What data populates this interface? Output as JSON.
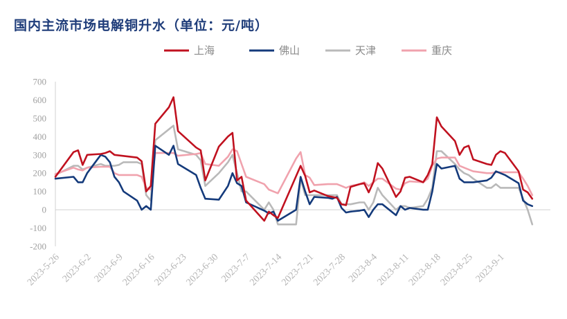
{
  "chart_data": {
    "type": "line",
    "title": "国内主流市场电解铜升水（单位：元/吨）",
    "xlabel": "",
    "ylabel": "",
    "ylim": [
      -200,
      700
    ],
    "yticks": [
      -200,
      -100,
      0,
      100,
      200,
      300,
      400,
      500,
      600,
      700
    ],
    "x_range": [
      "2023-5-26",
      "2023-9-12"
    ],
    "x_tick_labels": [
      "2023-5-26",
      "2023-6-2",
      "2023-6-9",
      "2023-6-16",
      "2023-6-23",
      "2023-6-30",
      "2023-7-7",
      "2023-7-14",
      "2023-7-21",
      "2023-7-28",
      "2023-8-4",
      "2023-8-11",
      "2023-8-18",
      "2023-8-25",
      "2023-9-1"
    ],
    "grid": false,
    "legend_position": "top",
    "legend": [
      "上海",
      "佛山",
      "天津",
      "重庆"
    ],
    "series": [
      {
        "name": "上海",
        "color": "#c0111f",
        "points": [
          [
            "2023-5-26",
            180
          ],
          [
            "2023-5-30",
            315
          ],
          [
            "2023-5-31",
            325
          ],
          [
            "2023-6-1",
            245
          ],
          [
            "2023-6-2",
            300
          ],
          [
            "2023-6-5",
            305
          ],
          [
            "2023-6-6",
            310
          ],
          [
            "2023-6-7",
            320
          ],
          [
            "2023-6-8",
            300
          ],
          [
            "2023-6-13",
            285
          ],
          [
            "2023-6-14",
            265
          ],
          [
            "2023-6-15",
            100
          ],
          [
            "2023-6-16",
            130
          ],
          [
            "2023-6-17",
            470
          ],
          [
            "2023-6-20",
            560
          ],
          [
            "2023-6-21",
            615
          ],
          [
            "2023-6-22",
            430
          ],
          [
            "2023-6-26",
            340
          ],
          [
            "2023-6-27",
            325
          ],
          [
            "2023-6-28",
            160
          ],
          [
            "2023-7-1",
            345
          ],
          [
            "2023-7-3",
            400
          ],
          [
            "2023-7-4",
            420
          ],
          [
            "2023-7-5",
            160
          ],
          [
            "2023-7-6",
            180
          ],
          [
            "2023-7-7",
            50
          ],
          [
            "2023-7-11",
            -60
          ],
          [
            "2023-7-12",
            -10
          ],
          [
            "2023-7-13",
            -30
          ],
          [
            "2023-7-14",
            -45
          ],
          [
            "2023-7-19",
            240
          ],
          [
            "2023-7-20",
            185
          ],
          [
            "2023-7-21",
            95
          ],
          [
            "2023-7-22",
            105
          ],
          [
            "2023-7-25",
            75
          ],
          [
            "2023-7-26",
            70
          ],
          [
            "2023-7-27",
            65
          ],
          [
            "2023-7-28",
            30
          ],
          [
            "2023-7-29",
            25
          ],
          [
            "2023-7-30",
            125
          ],
          [
            "2023-8-1",
            140
          ],
          [
            "2023-8-2",
            145
          ],
          [
            "2023-8-3",
            95
          ],
          [
            "2023-8-4",
            150
          ],
          [
            "2023-8-5",
            255
          ],
          [
            "2023-8-6",
            225
          ],
          [
            "2023-8-9",
            70
          ],
          [
            "2023-8-10",
            100
          ],
          [
            "2023-8-11",
            175
          ],
          [
            "2023-8-12",
            180
          ],
          [
            "2023-8-15",
            150
          ],
          [
            "2023-8-16",
            190
          ],
          [
            "2023-8-17",
            250
          ],
          [
            "2023-8-18",
            505
          ],
          [
            "2023-8-19",
            455
          ],
          [
            "2023-8-22",
            375
          ],
          [
            "2023-8-23",
            300
          ],
          [
            "2023-8-24",
            340
          ],
          [
            "2023-8-25",
            350
          ],
          [
            "2023-8-26",
            275
          ],
          [
            "2023-8-29",
            250
          ],
          [
            "2023-8-30",
            245
          ],
          [
            "2023-8-31",
            300
          ],
          [
            "2023-9-1",
            320
          ],
          [
            "2023-9-2",
            310
          ],
          [
            "2023-9-5",
            210
          ],
          [
            "2023-9-6",
            110
          ],
          [
            "2023-9-7",
            95
          ],
          [
            "2023-9-8",
            60
          ]
        ]
      },
      {
        "name": "佛山",
        "color": "#143a7b",
        "points": [
          [
            "2023-5-26",
            170
          ],
          [
            "2023-5-30",
            180
          ],
          [
            "2023-5-31",
            150
          ],
          [
            "2023-6-1",
            150
          ],
          [
            "2023-6-2",
            200
          ],
          [
            "2023-6-5",
            300
          ],
          [
            "2023-6-6",
            290
          ],
          [
            "2023-6-7",
            260
          ],
          [
            "2023-6-8",
            180
          ],
          [
            "2023-6-9",
            150
          ],
          [
            "2023-6-10",
            100
          ],
          [
            "2023-6-13",
            50
          ],
          [
            "2023-6-14",
            0
          ],
          [
            "2023-6-15",
            20
          ],
          [
            "2023-6-16",
            0
          ],
          [
            "2023-6-17",
            350
          ],
          [
            "2023-6-20",
            300
          ],
          [
            "2023-6-21",
            350
          ],
          [
            "2023-6-22",
            250
          ],
          [
            "2023-6-26",
            190
          ],
          [
            "2023-6-27",
            120
          ],
          [
            "2023-6-28",
            60
          ],
          [
            "2023-7-1",
            55
          ],
          [
            "2023-7-3",
            130
          ],
          [
            "2023-7-4",
            200
          ],
          [
            "2023-7-5",
            145
          ],
          [
            "2023-7-6",
            130
          ],
          [
            "2023-7-7",
            40
          ],
          [
            "2023-7-11",
            -5
          ],
          [
            "2023-7-12",
            -20
          ],
          [
            "2023-7-13",
            -10
          ],
          [
            "2023-7-14",
            -60
          ],
          [
            "2023-7-18",
            0
          ],
          [
            "2023-7-19",
            180
          ],
          [
            "2023-7-20",
            100
          ],
          [
            "2023-7-21",
            30
          ],
          [
            "2023-7-22",
            70
          ],
          [
            "2023-7-25",
            65
          ],
          [
            "2023-7-26",
            60
          ],
          [
            "2023-7-27",
            70
          ],
          [
            "2023-7-28",
            10
          ],
          [
            "2023-7-29",
            -15
          ],
          [
            "2023-7-30",
            -10
          ],
          [
            "2023-8-1",
            -5
          ],
          [
            "2023-8-2",
            0
          ],
          [
            "2023-8-3",
            -40
          ],
          [
            "2023-8-4",
            0
          ],
          [
            "2023-8-5",
            30
          ],
          [
            "2023-8-6",
            30
          ],
          [
            "2023-8-9",
            -30
          ],
          [
            "2023-8-10",
            20
          ],
          [
            "2023-8-11",
            0
          ],
          [
            "2023-8-12",
            10
          ],
          [
            "2023-8-15",
            0
          ],
          [
            "2023-8-16",
            0
          ],
          [
            "2023-8-17",
            100
          ],
          [
            "2023-8-18",
            250
          ],
          [
            "2023-8-19",
            225
          ],
          [
            "2023-8-22",
            240
          ],
          [
            "2023-8-23",
            170
          ],
          [
            "2023-8-24",
            150
          ],
          [
            "2023-8-25",
            150
          ],
          [
            "2023-8-26",
            150
          ],
          [
            "2023-8-29",
            160
          ],
          [
            "2023-8-30",
            175
          ],
          [
            "2023-8-31",
            210
          ],
          [
            "2023-9-1",
            200
          ],
          [
            "2023-9-2",
            190
          ],
          [
            "2023-9-5",
            145
          ],
          [
            "2023-9-6",
            50
          ],
          [
            "2023-9-7",
            30
          ],
          [
            "2023-9-8",
            20
          ]
        ]
      },
      {
        "name": "天津",
        "color": "#b9b9b9",
        "points": [
          [
            "2023-5-26",
            190
          ],
          [
            "2023-5-30",
            240
          ],
          [
            "2023-5-31",
            240
          ],
          [
            "2023-6-1",
            220
          ],
          [
            "2023-6-2",
            230
          ],
          [
            "2023-6-5",
            250
          ],
          [
            "2023-6-6",
            240
          ],
          [
            "2023-6-7",
            240
          ],
          [
            "2023-6-8",
            240
          ],
          [
            "2023-6-9",
            245
          ],
          [
            "2023-6-10",
            260
          ],
          [
            "2023-6-13",
            260
          ],
          [
            "2023-6-14",
            250
          ],
          [
            "2023-6-15",
            80
          ],
          [
            "2023-6-16",
            50
          ],
          [
            "2023-6-17",
            380
          ],
          [
            "2023-6-20",
            440
          ],
          [
            "2023-6-21",
            460
          ],
          [
            "2023-6-22",
            330
          ],
          [
            "2023-6-26",
            300
          ],
          [
            "2023-6-27",
            270
          ],
          [
            "2023-6-28",
            130
          ],
          [
            "2023-7-1",
            200
          ],
          [
            "2023-7-3",
            260
          ],
          [
            "2023-7-4",
            300
          ],
          [
            "2023-7-5",
            200
          ],
          [
            "2023-7-6",
            100
          ],
          [
            "2023-7-7",
            100
          ],
          [
            "2023-7-11",
            0
          ],
          [
            "2023-7-12",
            40
          ],
          [
            "2023-7-13",
            0
          ],
          [
            "2023-7-14",
            -80
          ],
          [
            "2023-7-18",
            -80
          ],
          [
            "2023-7-19",
            170
          ],
          [
            "2023-7-20",
            80
          ],
          [
            "2023-7-21",
            80
          ],
          [
            "2023-7-22",
            80
          ],
          [
            "2023-7-25",
            80
          ],
          [
            "2023-7-26",
            80
          ],
          [
            "2023-7-27",
            80
          ],
          [
            "2023-7-28",
            30
          ],
          [
            "2023-7-29",
            30
          ],
          [
            "2023-7-30",
            30
          ],
          [
            "2023-8-1",
            40
          ],
          [
            "2023-8-2",
            40
          ],
          [
            "2023-8-3",
            0
          ],
          [
            "2023-8-4",
            40
          ],
          [
            "2023-8-5",
            120
          ],
          [
            "2023-8-6",
            80
          ],
          [
            "2023-8-9",
            0
          ],
          [
            "2023-8-10",
            20
          ],
          [
            "2023-8-11",
            20
          ],
          [
            "2023-8-12",
            10
          ],
          [
            "2023-8-15",
            20
          ],
          [
            "2023-8-16",
            60
          ],
          [
            "2023-8-17",
            120
          ],
          [
            "2023-8-18",
            320
          ],
          [
            "2023-8-19",
            320
          ],
          [
            "2023-8-22",
            250
          ],
          [
            "2023-8-23",
            220
          ],
          [
            "2023-8-24",
            200
          ],
          [
            "2023-8-25",
            190
          ],
          [
            "2023-8-26",
            170
          ],
          [
            "2023-8-29",
            120
          ],
          [
            "2023-8-30",
            120
          ],
          [
            "2023-8-31",
            140
          ],
          [
            "2023-9-1",
            120
          ],
          [
            "2023-9-2",
            120
          ],
          [
            "2023-9-5",
            120
          ],
          [
            "2023-9-6",
            60
          ],
          [
            "2023-9-7",
            0
          ],
          [
            "2023-9-8",
            -80
          ]
        ]
      },
      {
        "name": "重庆",
        "color": "#f0a2ad",
        "points": [
          [
            "2023-5-26",
            195
          ],
          [
            "2023-5-30",
            230
          ],
          [
            "2023-5-31",
            220
          ],
          [
            "2023-6-1",
            215
          ],
          [
            "2023-6-2",
            230
          ],
          [
            "2023-6-5",
            235
          ],
          [
            "2023-6-6",
            235
          ],
          [
            "2023-6-7",
            235
          ],
          [
            "2023-6-8",
            200
          ],
          [
            "2023-6-9",
            190
          ],
          [
            "2023-6-10",
            190
          ],
          [
            "2023-6-13",
            190
          ],
          [
            "2023-6-14",
            180
          ],
          [
            "2023-6-15",
            120
          ],
          [
            "2023-6-16",
            110
          ],
          [
            "2023-6-17",
            310
          ],
          [
            "2023-6-20",
            310
          ],
          [
            "2023-6-21",
            310
          ],
          [
            "2023-6-22",
            295
          ],
          [
            "2023-6-26",
            305
          ],
          [
            "2023-6-27",
            310
          ],
          [
            "2023-6-28",
            250
          ],
          [
            "2023-7-1",
            240
          ],
          [
            "2023-7-3",
            290
          ],
          [
            "2023-7-4",
            330
          ],
          [
            "2023-7-5",
            320
          ],
          [
            "2023-7-6",
            250
          ],
          [
            "2023-7-7",
            180
          ],
          [
            "2023-7-11",
            140
          ],
          [
            "2023-7-12",
            110
          ],
          [
            "2023-7-13",
            100
          ],
          [
            "2023-7-14",
            90
          ],
          [
            "2023-7-18",
            280
          ],
          [
            "2023-7-19",
            315
          ],
          [
            "2023-7-20",
            190
          ],
          [
            "2023-7-21",
            175
          ],
          [
            "2023-7-22",
            135
          ],
          [
            "2023-7-25",
            140
          ],
          [
            "2023-7-26",
            140
          ],
          [
            "2023-7-27",
            140
          ],
          [
            "2023-7-28",
            130
          ],
          [
            "2023-7-29",
            120
          ],
          [
            "2023-7-30",
            130
          ],
          [
            "2023-8-1",
            140
          ],
          [
            "2023-8-2",
            150
          ],
          [
            "2023-8-3",
            130
          ],
          [
            "2023-8-4",
            150
          ],
          [
            "2023-8-5",
            170
          ],
          [
            "2023-8-6",
            170
          ],
          [
            "2023-8-9",
            115
          ],
          [
            "2023-8-10",
            110
          ],
          [
            "2023-8-11",
            145
          ],
          [
            "2023-8-12",
            155
          ],
          [
            "2023-8-15",
            150
          ],
          [
            "2023-8-16",
            170
          ],
          [
            "2023-8-17",
            240
          ],
          [
            "2023-8-18",
            280
          ],
          [
            "2023-8-19",
            285
          ],
          [
            "2023-8-22",
            285
          ],
          [
            "2023-8-23",
            240
          ],
          [
            "2023-8-24",
            230
          ],
          [
            "2023-8-25",
            220
          ],
          [
            "2023-8-26",
            210
          ],
          [
            "2023-8-29",
            200
          ],
          [
            "2023-8-30",
            200
          ],
          [
            "2023-8-31",
            205
          ],
          [
            "2023-9-1",
            205
          ],
          [
            "2023-9-2",
            205
          ],
          [
            "2023-9-5",
            205
          ],
          [
            "2023-9-6",
            170
          ],
          [
            "2023-9-7",
            130
          ],
          [
            "2023-9-8",
            80
          ]
        ]
      }
    ]
  }
}
